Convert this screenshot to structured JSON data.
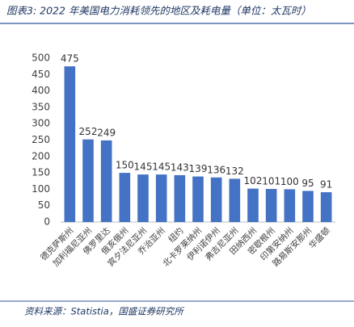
{
  "chart_data": {
    "type": "bar",
    "title": "图表3: 2022 年美国电力消耗领先的地区及耗电量（单位：太瓦时）",
    "categories": [
      "德克萨斯州",
      "加利福尼亚州",
      "佛罗里达",
      "俄亥俄州",
      "宾夕法尼亚州",
      "乔治亚州",
      "纽约",
      "北卡罗莱纳州",
      "伊利诺伊州",
      "弗吉尼亚州",
      "田纳西州",
      "密歇根州",
      "印第安纳州",
      "路易斯安那州",
      "华盛顿"
    ],
    "values": [
      475,
      252,
      249,
      150,
      145,
      145,
      143,
      139,
      136,
      132,
      102,
      101,
      100,
      95,
      91
    ],
    "color": "#4472c4",
    "ylim": [
      0,
      500
    ],
    "yticks": [
      0,
      50,
      100,
      150,
      200,
      250,
      300,
      350,
      400,
      450,
      500
    ],
    "grid": false
  },
  "source": "资料来源：Statistia，国盛证券研究所"
}
